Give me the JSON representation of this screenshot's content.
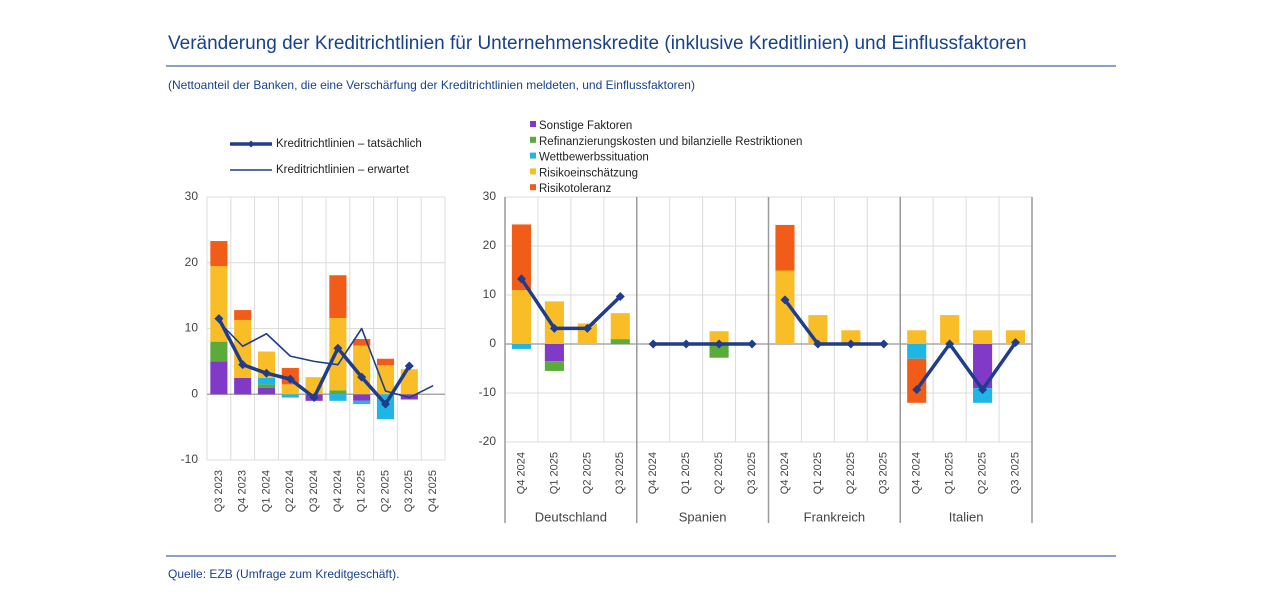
{
  "title": "Veränderung der Kreditrichtlinien für Unternehmenskredite (inklusive Kreditlinien) und Einflussfaktoren",
  "subtitle": "(Nettoanteil der Banken, die eine Verschärfung der Kreditrichtlinien meldeten, und Einflussfaktoren)",
  "source": "Quelle: EZB (Umfrage zum Kreditgeschäft).",
  "chart_data": [
    {
      "type": "bar",
      "categories": [
        "Q3 2023",
        "Q4 2023",
        "Q1 2024",
        "Q2 2024",
        "Q3 2024",
        "Q4 2024",
        "Q1 2025",
        "Q2 2025",
        "Q3 2025",
        "Q4 2025"
      ],
      "ylim": [
        -10,
        30
      ],
      "yticks": [
        -10,
        0,
        10,
        20,
        30
      ],
      "grid": true,
      "series": [
        {
          "color": "#8139c8",
          "values": [
            5,
            2.5,
            1,
            0,
            -1,
            0,
            -1,
            0,
            -0.8,
            null
          ]
        },
        {
          "color": "#5aab3a",
          "values": [
            3,
            0,
            0.5,
            0,
            0,
            0.6,
            0,
            0,
            0,
            null
          ]
        },
        {
          "color": "#1fb6e6",
          "values": [
            0,
            0,
            1,
            -0.5,
            0,
            -1,
            -0.5,
            -3.8,
            0,
            null
          ]
        },
        {
          "color": "#f9bd27",
          "values": [
            11.5,
            8.8,
            4,
            1.5,
            2.6,
            11,
            7.4,
            4.4,
            3.8,
            null
          ]
        },
        {
          "color": "#f25c19",
          "values": [
            3.8,
            1.5,
            0,
            2.5,
            0,
            6.5,
            1,
            1,
            0,
            null
          ]
        }
      ],
      "lines": [
        {
          "name": "Kreditrichtlinien – tatsächlich",
          "color": "#1f3d8c",
          "width": 3.5,
          "markers": true,
          "values": [
            11.5,
            4.5,
            3.2,
            2.3,
            -0.5,
            7,
            2.6,
            -1.5,
            4.3,
            null
          ]
        },
        {
          "name": "Kreditrichtlinien – erwartet",
          "color": "#1f3d8c",
          "width": 1.6,
          "markers": false,
          "values": [
            11,
            7.3,
            9.2,
            5.8,
            5,
            4.5,
            10,
            0.5,
            -0.5,
            1.3
          ]
        }
      ]
    },
    {
      "type": "bar",
      "categories": [
        "Q4 2024",
        "Q1 2025",
        "Q2 2025",
        "Q3 2025",
        "Q4 2024",
        "Q1 2025",
        "Q2 2025",
        "Q3 2025",
        "Q4 2024",
        "Q1 2025",
        "Q2 2025",
        "Q3 2025",
        "Q4 2024",
        "Q1 2025",
        "Q2 2025",
        "Q3 2025"
      ],
      "groups": [
        "Deutschland",
        "Spanien",
        "Frankreich",
        "Italien"
      ],
      "ylim": [
        -20,
        30
      ],
      "yticks": [
        -20,
        -10,
        0,
        10,
        20,
        30
      ],
      "grid": true,
      "series": [
        {
          "name": "Sonstige Faktoren",
          "color": "#8139c8",
          "values": [
            0,
            -3.5,
            0,
            0,
            0,
            0,
            0,
            0,
            0,
            0,
            0,
            0,
            0,
            0,
            -9,
            0
          ]
        },
        {
          "name": "Refinanzierungskosten und bilanzielle Restriktionen",
          "color": "#5aab3a",
          "values": [
            0,
            -2,
            0,
            1,
            0,
            0,
            -2.8,
            0,
            0,
            0,
            0,
            0,
            0,
            0,
            0,
            0
          ]
        },
        {
          "name": "Wettbewerbssituation",
          "color": "#1fb6e6",
          "values": [
            -1,
            0,
            0,
            0,
            0,
            0,
            0,
            0,
            0,
            0,
            0,
            0,
            -3,
            0,
            -3,
            0
          ]
        },
        {
          "name": "Risikoeinschätzung",
          "color": "#f9bd27",
          "values": [
            11,
            8.7,
            4.2,
            5.3,
            0,
            0,
            2.6,
            0,
            15,
            5.9,
            2.8,
            0,
            2.8,
            5.9,
            2.8,
            2.8
          ]
        },
        {
          "name": "Risikotoleranz",
          "color": "#f25c19",
          "values": [
            13.4,
            0,
            0,
            0,
            0,
            0,
            0,
            0,
            9.3,
            0,
            0,
            0,
            -9,
            0,
            0,
            0
          ]
        }
      ],
      "lines": [
        {
          "color": "#1f3d8c",
          "width": 3.5,
          "markers": true,
          "values": [
            13.3,
            3.2,
            3.2,
            9.7,
            0,
            0,
            0,
            0,
            9,
            0,
            0,
            0,
            -9.3,
            0,
            -9.3,
            0.3
          ]
        }
      ]
    }
  ]
}
